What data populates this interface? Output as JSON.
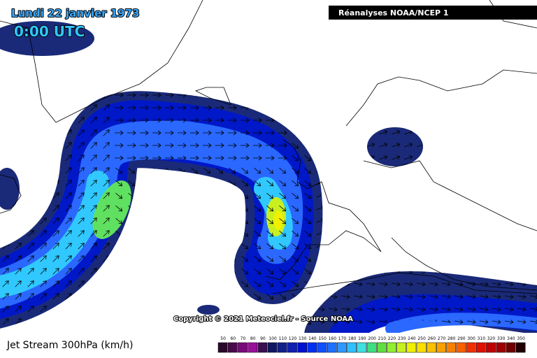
{
  "header": {
    "date": "Lundi 22 janvier 1973",
    "time": "0:00 UTC",
    "source": "Réanalyses NOAA/NCEP 1"
  },
  "copyright": "Copyright © 2021 Meteociel.fr - Source NOAA",
  "legend": {
    "title": "Jet Stream 300hPa (km/h)",
    "ticks": [
      50,
      60,
      70,
      80,
      90,
      100,
      110,
      120,
      130,
      140,
      150,
      160,
      170,
      180,
      190,
      200,
      210,
      220,
      230,
      240,
      250,
      260,
      270,
      280,
      290,
      300,
      310,
      320,
      330,
      340,
      350
    ],
    "colors": [
      "#2a0a2a",
      "#4a0a4a",
      "#7a0a7a",
      "#9a109a",
      "#3a1050",
      "#101860",
      "#14208a",
      "#1020b0",
      "#0010d0",
      "#0030f0",
      "#1050ff",
      "#2070ff",
      "#3098ff",
      "#30c0ff",
      "#40e0e0",
      "#40e080",
      "#60e040",
      "#90f030",
      "#c8f020",
      "#f0f000",
      "#f8e000",
      "#f8c000",
      "#f8a000",
      "#f88000",
      "#f86000",
      "#f03000",
      "#e01000",
      "#c00000",
      "#a00000",
      "#700000",
      "#200000"
    ]
  }
}
